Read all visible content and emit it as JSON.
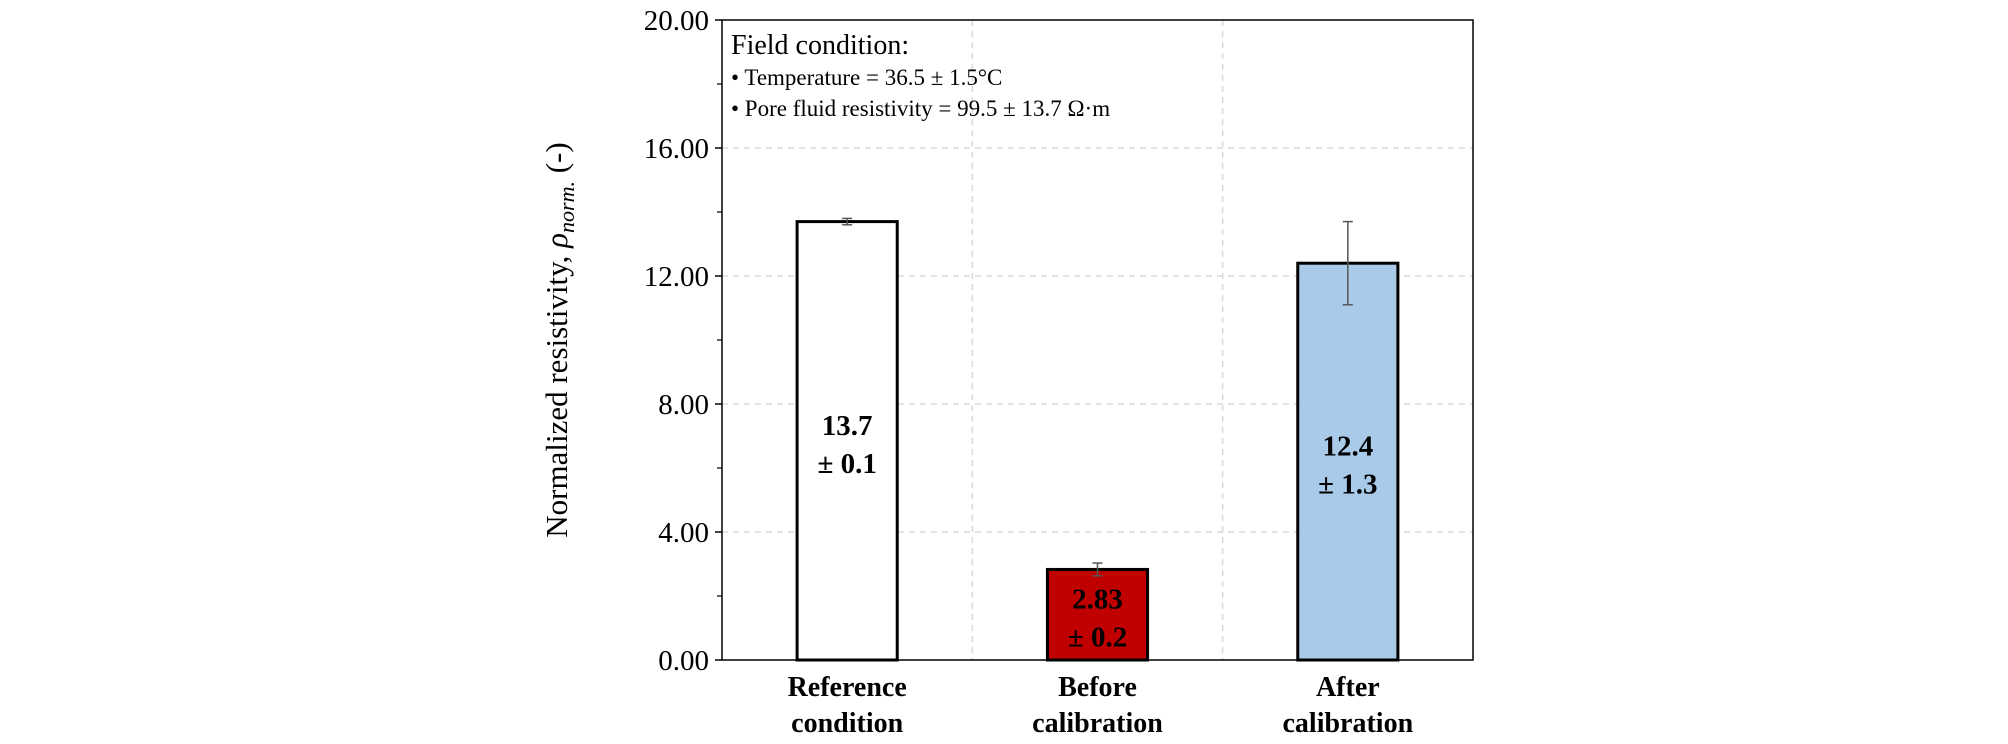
{
  "chart_data": {
    "type": "bar",
    "categories": [
      [
        "Reference",
        "condition"
      ],
      [
        "Before",
        "calibration"
      ],
      [
        "After",
        "calibration"
      ]
    ],
    "values": [
      13.7,
      2.83,
      12.4
    ],
    "errors": [
      0.1,
      0.2,
      1.3
    ],
    "data_labels": [
      [
        "13.7",
        "± 0.1"
      ],
      [
        "2.83",
        "± 0.2"
      ],
      [
        "12.4",
        "± 1.3"
      ]
    ],
    "bar_colors": [
      "#ffffff",
      "#c00000",
      "#a9cbe9"
    ],
    "ylabel_main": "Normalized resistivity, ",
    "ylabel_symbol": "ρ",
    "ylabel_subscript": "norm.",
    "ylabel_unit": " (-)",
    "ylim": [
      0,
      20
    ],
    "yticks": [
      "0.00",
      "4.00",
      "8.00",
      "12.00",
      "16.00",
      "20.00"
    ],
    "grid": true,
    "annotation": {
      "title": "Field condition:",
      "items": [
        "• Temperature = 36.5 ± 1.5°C",
        "• Pore fluid resistivity = 99.5 ± 13.7 Ω·m"
      ]
    }
  }
}
